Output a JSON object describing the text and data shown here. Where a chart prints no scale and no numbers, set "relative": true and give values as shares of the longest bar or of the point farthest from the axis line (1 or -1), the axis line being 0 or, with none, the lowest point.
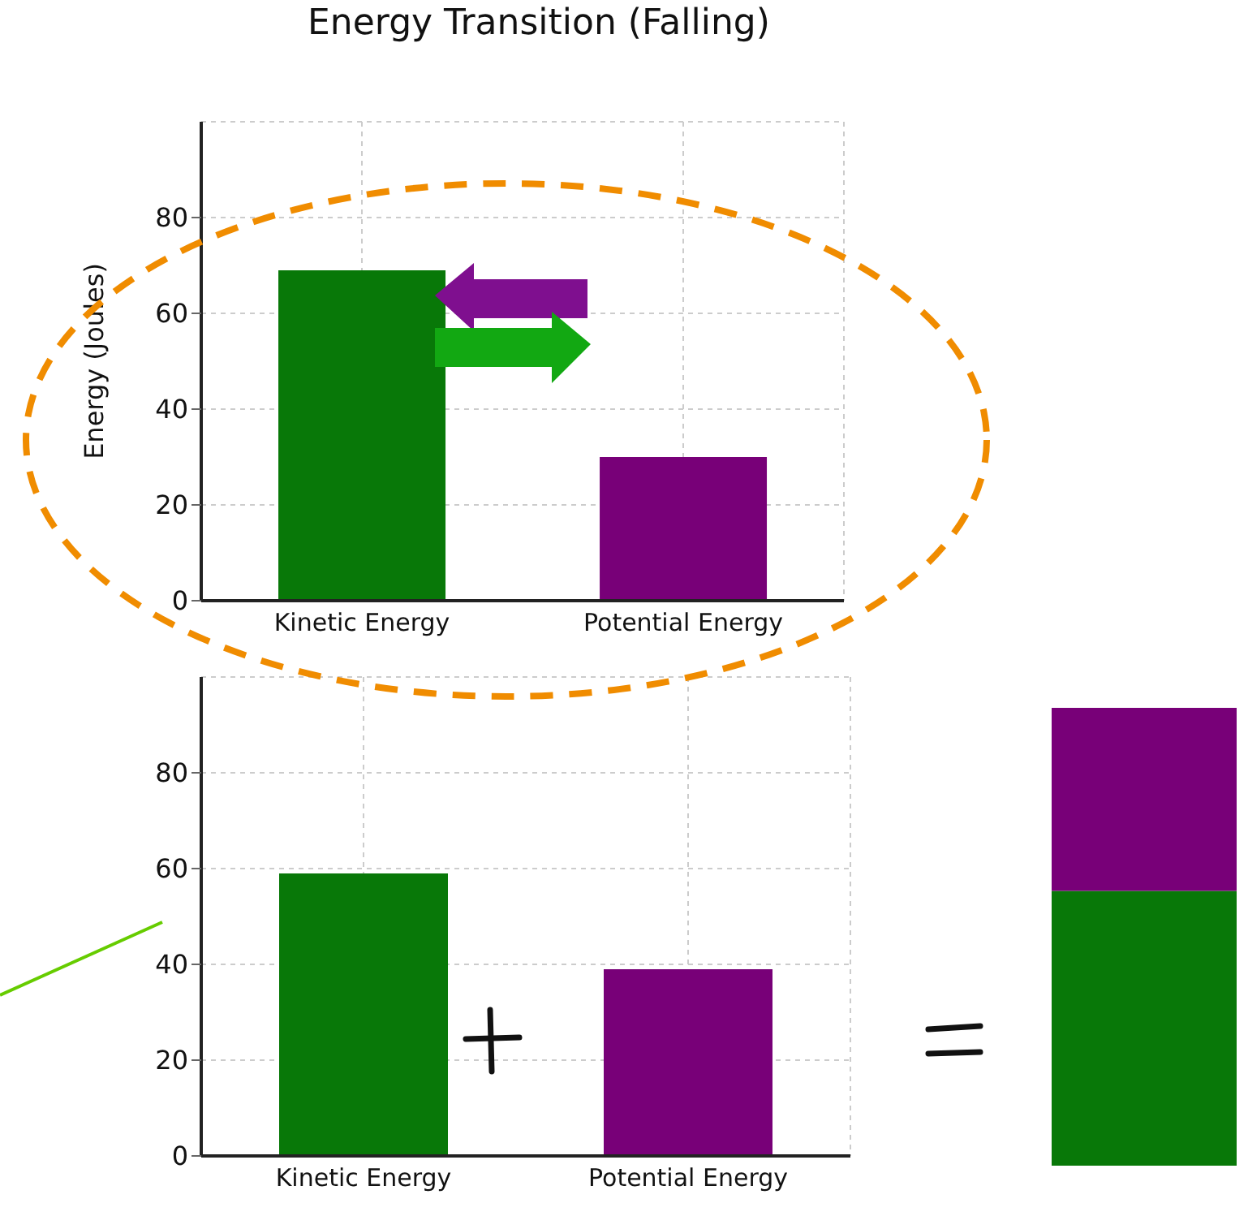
{
  "chart_data": [
    {
      "type": "bar",
      "title": "Energy Transition (Falling)",
      "ylabel": "Energy (Joules)",
      "categories": [
        "Kinetic Energy",
        "Potential Energy"
      ],
      "values": [
        69,
        30
      ],
      "colors": [
        "#087808",
        "#780078"
      ],
      "ylim": [
        0,
        100
      ],
      "yticks": [
        0,
        20,
        40,
        60,
        80
      ],
      "grid": true
    },
    {
      "type": "bar",
      "categories": [
        "Kinetic Energy",
        "Potential Energy"
      ],
      "values": [
        59,
        39
      ],
      "colors": [
        "#087808",
        "#780078"
      ],
      "ylim": [
        0,
        100
      ],
      "yticks": [
        0,
        20,
        40,
        60,
        80
      ],
      "grid": true
    },
    {
      "type": "bar",
      "categories": [
        null
      ],
      "stacked": true,
      "relative": true,
      "series": [
        {
          "color": "#087808",
          "values": [
            0.6
          ]
        },
        {
          "color": "#780078",
          "values": [
            0.4
          ]
        }
      ]
    }
  ]
}
